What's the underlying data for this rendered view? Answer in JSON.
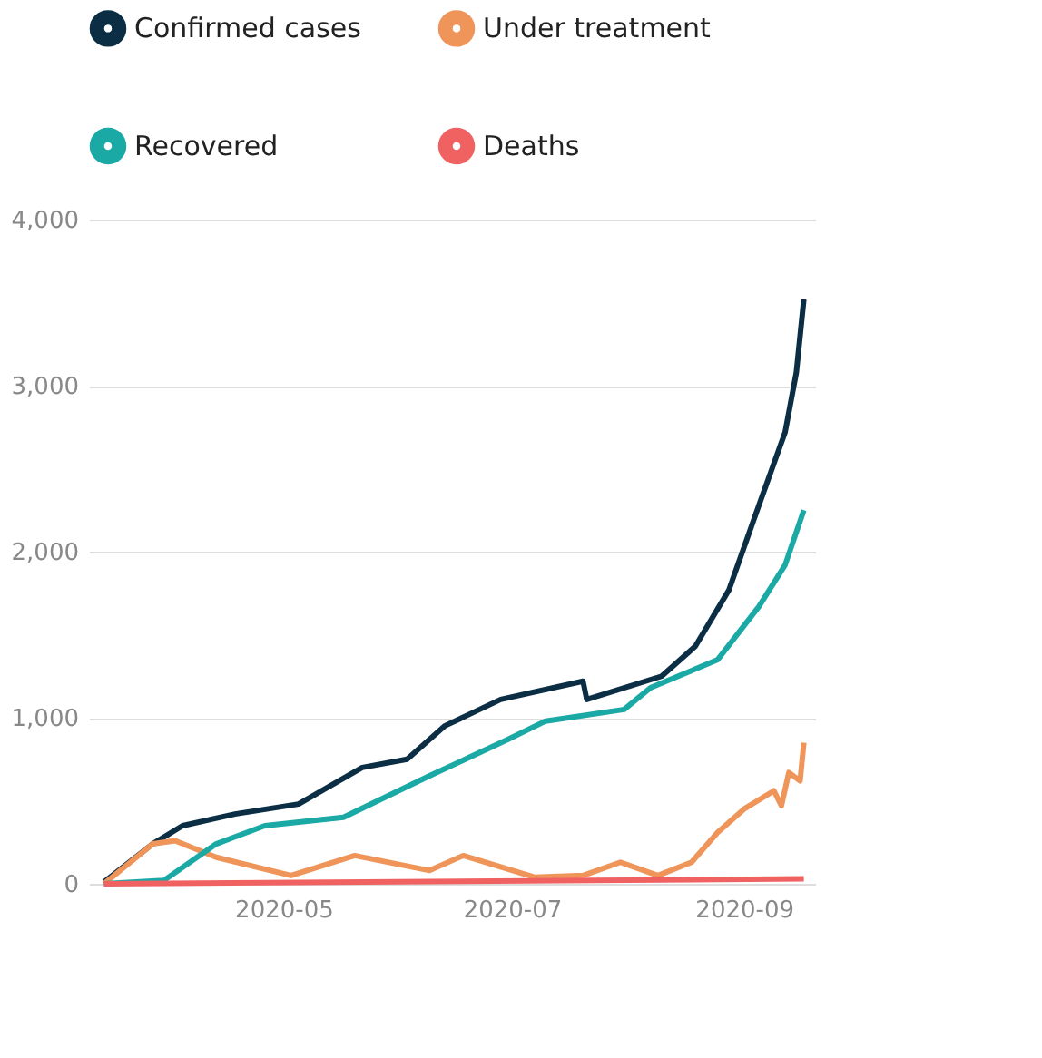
{
  "chart_data": {
    "type": "line",
    "xlim": [
      "2020-03-10",
      "2020-09-20"
    ],
    "ylim": [
      0,
      4000
    ],
    "yticks": [
      0,
      {
        "value": 1000,
        "label": "1,000"
      },
      {
        "value": 2000,
        "label": "2,000"
      },
      {
        "value": 3000,
        "label": "3,000"
      },
      {
        "value": 4000,
        "label": "4,000"
      }
    ],
    "xticks": [
      {
        "value": "2020-05-01",
        "label": "2020-05"
      },
      {
        "value": "2020-07-01",
        "label": "2020-07"
      },
      {
        "value": "2020-09-01",
        "label": "2020-09"
      }
    ],
    "grid": "y",
    "legend": "top",
    "line_style": "solid",
    "marker": "none",
    "series": [
      {
        "name": "Confirmed cases",
        "color": "#0b2e45",
        "x": [
          "2020-03-14",
          "2020-03-27",
          "2020-04-04",
          "2020-04-18",
          "2020-05-05",
          "2020-05-22",
          "2020-06-03",
          "2020-06-13",
          "2020-06-28",
          "2020-07-20",
          "2020-07-21",
          "2020-08-10",
          "2020-08-19",
          "2020-08-28",
          "2020-09-05",
          "2020-09-12",
          "2020-09-15",
          "2020-09-17"
        ],
        "values": [
          10,
          240,
          350,
          420,
          480,
          700,
          750,
          950,
          1110,
          1220,
          1110,
          1250,
          1430,
          1770,
          2280,
          2720,
          3080,
          3520
        ]
      },
      {
        "name": "Under treatment",
        "color": "#f0955a",
        "x": [
          "2020-03-14",
          "2020-03-27",
          "2020-04-02",
          "2020-04-13",
          "2020-05-03",
          "2020-05-20",
          "2020-06-09",
          "2020-06-18",
          "2020-07-07",
          "2020-07-20",
          "2020-07-30",
          "2020-08-09",
          "2020-08-18",
          "2020-08-25",
          "2020-09-01",
          "2020-09-09",
          "2020-09-11",
          "2020-09-13",
          "2020-09-16",
          "2020-09-17"
        ],
        "values": [
          0,
          240,
          260,
          160,
          50,
          170,
          80,
          170,
          40,
          50,
          130,
          50,
          130,
          310,
          450,
          560,
          470,
          670,
          620,
          850
        ]
      },
      {
        "name": "Recovered",
        "color": "#1aa9a5",
        "x": [
          "2020-03-14",
          "2020-03-30",
          "2020-04-13",
          "2020-04-26",
          "2020-05-17",
          "2020-06-09",
          "2020-06-30",
          "2020-07-10",
          "2020-07-31",
          "2020-08-07",
          "2020-08-25",
          "2020-09-05",
          "2020-09-12",
          "2020-09-17"
        ],
        "values": [
          0,
          20,
          240,
          350,
          400,
          650,
          870,
          980,
          1050,
          1180,
          1350,
          1670,
          1920,
          2250
        ]
      },
      {
        "name": "Deaths",
        "color": "#f06262",
        "x": [
          "2020-03-14",
          "2020-09-17"
        ],
        "values": [
          0,
          30
        ]
      }
    ]
  }
}
